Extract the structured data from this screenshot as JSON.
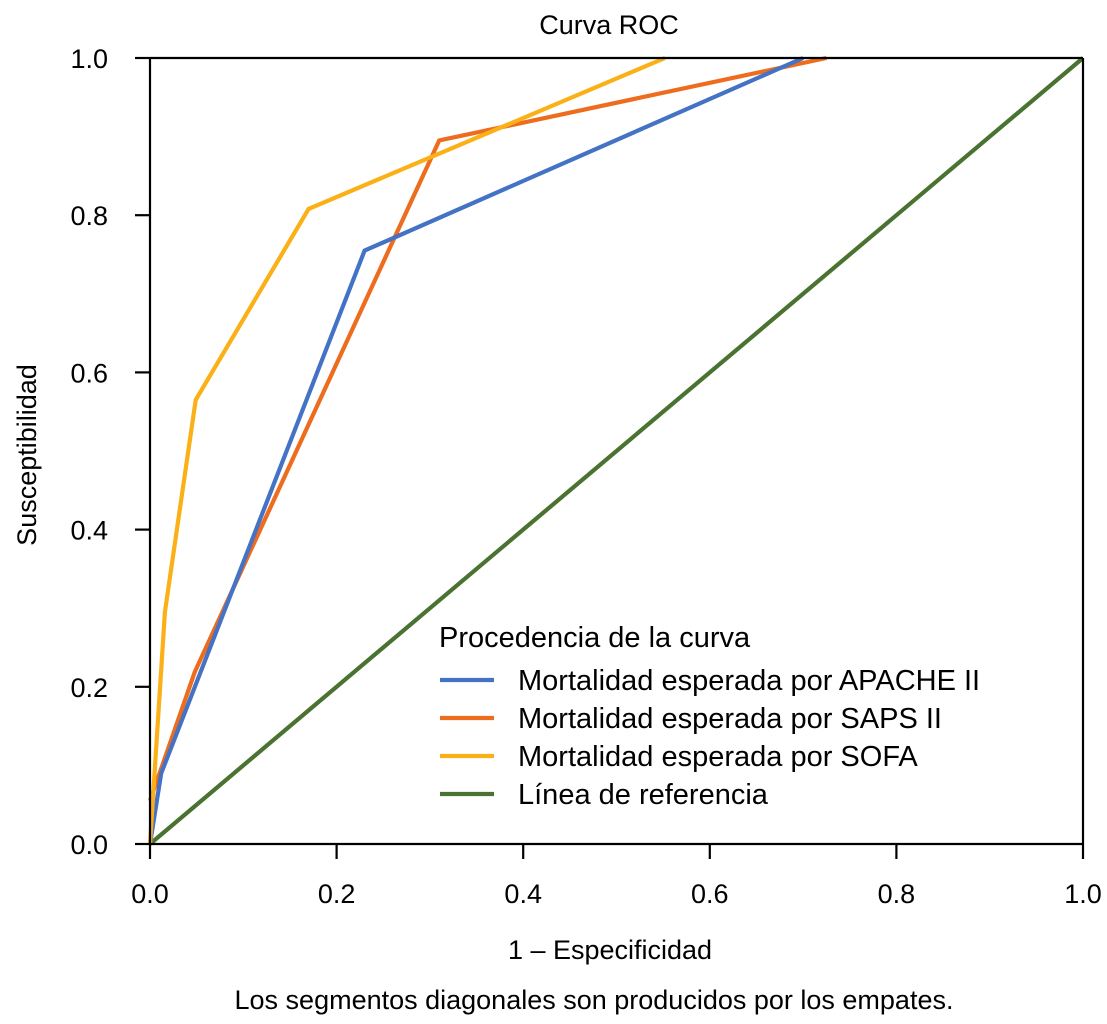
{
  "chart_data": {
    "type": "line",
    "title": "Curva ROC",
    "xlabel": "1 – Especificidad",
    "ylabel": "Susceptibilidad",
    "footnote": "Los segmentos diagonales son producidos por los empates.",
    "xlim": [
      0.0,
      1.0
    ],
    "ylim": [
      0.0,
      1.0
    ],
    "xticks": [
      "0.0",
      "0.2",
      "0.4",
      "0.6",
      "0.8",
      "1.0"
    ],
    "yticks": [
      "0.0",
      "0.2",
      "0.4",
      "0.6",
      "0.8",
      "1.0"
    ],
    "xtick_values": [
      0.0,
      0.2,
      0.4,
      0.6,
      0.8,
      1.0
    ],
    "ytick_values": [
      0.0,
      0.2,
      0.4,
      0.6,
      0.8,
      1.0
    ],
    "grid": false,
    "legend": {
      "title": "Procedencia de la curva",
      "placement": "bottom-right"
    },
    "series": [
      {
        "name": "Mortalidad esperada por APACHE II",
        "color": "#4472C4",
        "points": [
          [
            0.0,
            0.0
          ],
          [
            0.012,
            0.09
          ],
          [
            0.23,
            0.755
          ],
          [
            0.7,
            1.0
          ]
        ]
      },
      {
        "name": "Mortalidad esperada por SAPS II",
        "color": "#ED6C1E",
        "points": [
          [
            0.0,
            0.055
          ],
          [
            0.048,
            0.219
          ],
          [
            0.31,
            0.895
          ],
          [
            0.725,
            1.0
          ]
        ]
      },
      {
        "name": "Mortalidad esperada por SOFA",
        "color": "#FBB017",
        "points": [
          [
            0.0,
            0.0
          ],
          [
            0.016,
            0.295
          ],
          [
            0.049,
            0.565
          ],
          [
            0.17,
            0.808
          ],
          [
            0.552,
            1.0
          ]
        ]
      },
      {
        "name": "Línea de referencia",
        "color": "#4A7230",
        "points": [
          [
            0.0,
            0.0
          ],
          [
            1.0,
            1.0
          ]
        ]
      }
    ]
  }
}
